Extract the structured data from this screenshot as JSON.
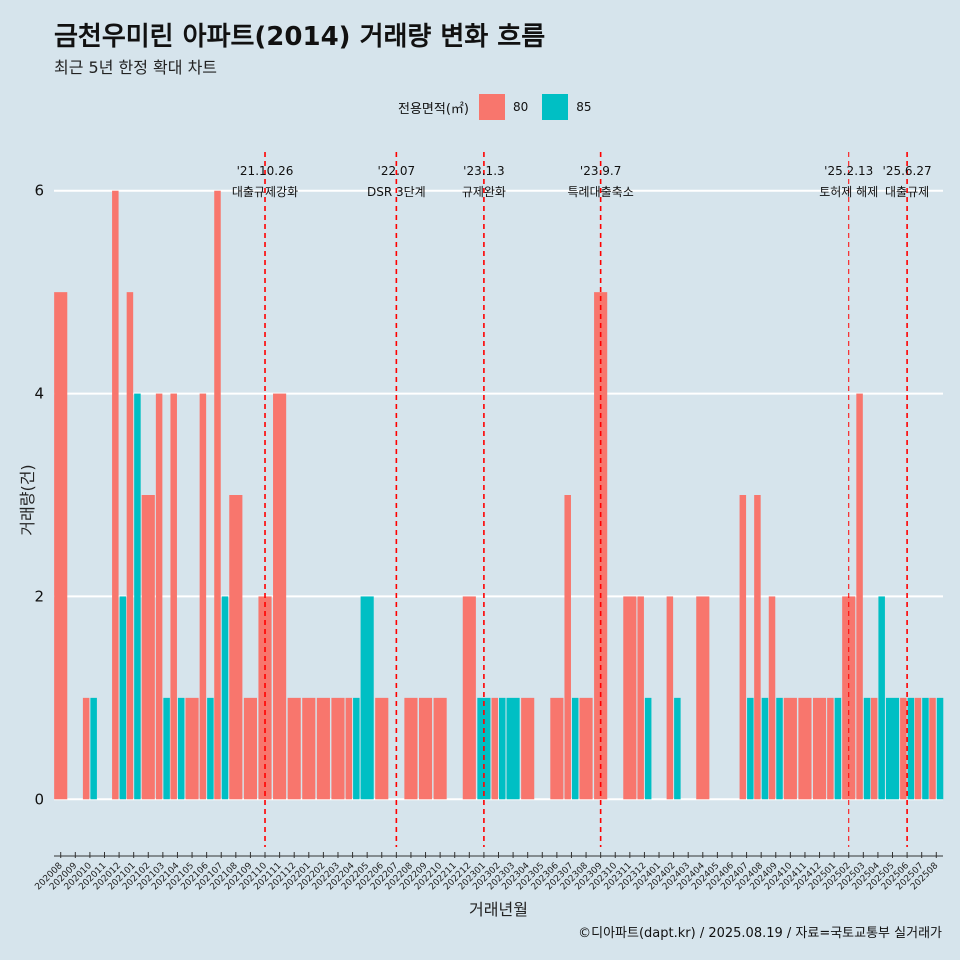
{
  "title": "금천우미린 아파트(2014) 거래량 변화 흐름",
  "subtitle": "최근 5년 한정 확대 차트",
  "caption": "©디아파트(dapt.kr) / 2025.08.19 / 자료=국토교통부 실거래가",
  "colors": {
    "background": "#d6e4ec",
    "area80": "#f8766d",
    "area85": "#00bfc4",
    "event_line": "#ff0000"
  },
  "legend": {
    "title": "전용면적(㎡)",
    "items": [
      {
        "label": "80",
        "color": "#f8766d"
      },
      {
        "label": "85",
        "color": "#00bfc4"
      }
    ]
  },
  "chart_data": {
    "type": "bar",
    "xlabel": "거래년월",
    "ylabel": "거래량(건)",
    "ylim": [
      -0.5,
      6.5
    ],
    "yticks": [
      0,
      2,
      4,
      6
    ],
    "categories": [
      "202008",
      "202009",
      "202010",
      "202011",
      "202012",
      "202101",
      "202102",
      "202103",
      "202104",
      "202105",
      "202106",
      "202107",
      "202108",
      "202109",
      "202110",
      "202111",
      "202112",
      "202201",
      "202202",
      "202203",
      "202204",
      "202205",
      "202206",
      "202207",
      "202208",
      "202209",
      "202210",
      "202211",
      "202212",
      "202301",
      "202302",
      "202303",
      "202304",
      "202305",
      "202306",
      "202307",
      "202308",
      "202309",
      "202310",
      "202311",
      "202312",
      "202401",
      "202402",
      "202403",
      "202404",
      "202405",
      "202406",
      "202407",
      "202408",
      "202409",
      "202410",
      "202411",
      "202412",
      "202501",
      "202502",
      "202503",
      "202504",
      "202505",
      "202506",
      "202507",
      "202508"
    ],
    "series": [
      {
        "name": "80",
        "values": [
          5,
          0,
          1,
          0,
          6,
          5,
          3,
          4,
          4,
          1,
          4,
          6,
          3,
          1,
          2,
          4,
          1,
          1,
          1,
          1,
          1,
          0,
          1,
          0,
          1,
          1,
          1,
          0,
          2,
          0,
          1,
          0,
          1,
          0,
          1,
          3,
          1,
          5,
          0,
          2,
          2,
          0,
          2,
          0,
          2,
          0,
          0,
          3,
          3,
          2,
          1,
          1,
          1,
          1,
          2,
          4,
          1,
          0,
          1,
          1,
          1
        ]
      },
      {
        "name": "85",
        "values": [
          0,
          0,
          1,
          0,
          2,
          4,
          0,
          1,
          1,
          0,
          1,
          2,
          0,
          0,
          0,
          0,
          0,
          0,
          0,
          0,
          1,
          2,
          0,
          0,
          0,
          0,
          0,
          0,
          0,
          1,
          1,
          1,
          0,
          0,
          0,
          1,
          0,
          0,
          0,
          0,
          1,
          0,
          1,
          0,
          0,
          0,
          0,
          1,
          1,
          1,
          0,
          0,
          0,
          1,
          0,
          1,
          2,
          1,
          1,
          1,
          1
        ]
      }
    ],
    "events": [
      {
        "date": "'21.10.26",
        "label": "대출규제강화",
        "at": 14.0
      },
      {
        "date": "'22.07",
        "label": "DSR 3단계",
        "at": 23.0
      },
      {
        "date": "'23.1.3",
        "label": "규제완화",
        "at": 29.0
      },
      {
        "date": "'23.9.7",
        "label": "특례대출축소",
        "at": 37.0
      },
      {
        "date": "'25.2.13",
        "label": "토허제 해제",
        "at": 54.0
      },
      {
        "date": "'25.6.27",
        "label": "대출규제",
        "at": 58.0
      }
    ]
  }
}
